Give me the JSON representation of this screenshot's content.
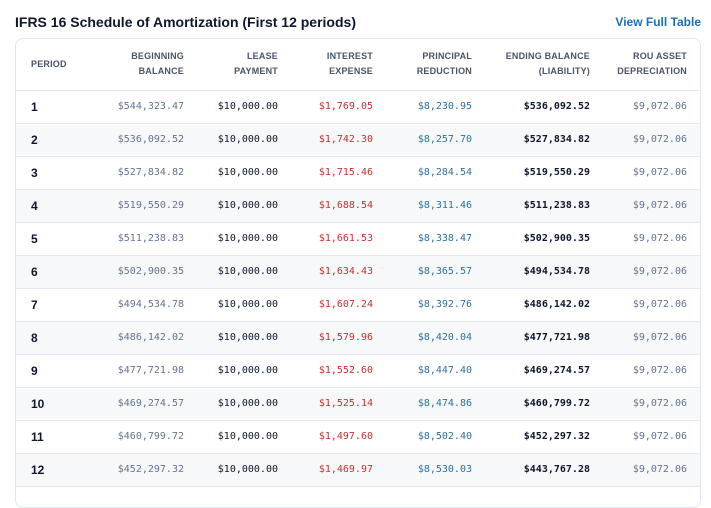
{
  "header": {
    "title": "IFRS 16 Schedule of Amortization (First 12 periods)",
    "link_label": "View Full Table"
  },
  "table": {
    "columns": [
      "PERIOD",
      "BEGINNING BALANCE",
      "LEASE PAYMENT",
      "INTEREST EXPENSE",
      "PRINCIPAL REDUCTION",
      "ENDING BALANCE (LIABILITY)",
      "ROU ASSET DEPRECIATION"
    ],
    "rows": [
      [
        "1",
        "$544,323.47",
        "$10,000.00",
        "$1,769.05",
        "$8,230.95",
        "$536,092.52",
        "$9,072.06"
      ],
      [
        "2",
        "$536,092.52",
        "$10,000.00",
        "$1,742.30",
        "$8,257.70",
        "$527,834.82",
        "$9,072.06"
      ],
      [
        "3",
        "$527,834.82",
        "$10,000.00",
        "$1,715.46",
        "$8,284.54",
        "$519,550.29",
        "$9,072.06"
      ],
      [
        "4",
        "$519,550.29",
        "$10,000.00",
        "$1,688.54",
        "$8,311.46",
        "$511,238.83",
        "$9,072.06"
      ],
      [
        "5",
        "$511,238.83",
        "$10,000.00",
        "$1,661.53",
        "$8,338.47",
        "$502,900.35",
        "$9,072.06"
      ],
      [
        "6",
        "$502,900.35",
        "$10,000.00",
        "$1,634.43",
        "$8,365.57",
        "$494,534.78",
        "$9,072.06"
      ],
      [
        "7",
        "$494,534.78",
        "$10,000.00",
        "$1,607.24",
        "$8,392.76",
        "$486,142.02",
        "$9,072.06"
      ],
      [
        "8",
        "$486,142.02",
        "$10,000.00",
        "$1,579.96",
        "$8,420.04",
        "$477,721.98",
        "$9,072.06"
      ],
      [
        "9",
        "$477,721.98",
        "$10,000.00",
        "$1,552.60",
        "$8,447.40",
        "$469,274.57",
        "$9,072.06"
      ],
      [
        "10",
        "$469,274.57",
        "$10,000.00",
        "$1,525.14",
        "$8,474.86",
        "$460,799.72",
        "$9,072.06"
      ],
      [
        "11",
        "$460,799.72",
        "$10,000.00",
        "$1,497.60",
        "$8,502.40",
        "$452,297.32",
        "$9,072.06"
      ],
      [
        "12",
        "$452,297.32",
        "$10,000.00",
        "$1,469.97",
        "$8,530.03",
        "$443,767.28",
        "$9,072.06"
      ]
    ]
  },
  "colors": {
    "title": "#0f172a",
    "link": "#1d6fb8",
    "interest": "#c53030",
    "principal": "#2f7199",
    "muted": "#64748b"
  }
}
